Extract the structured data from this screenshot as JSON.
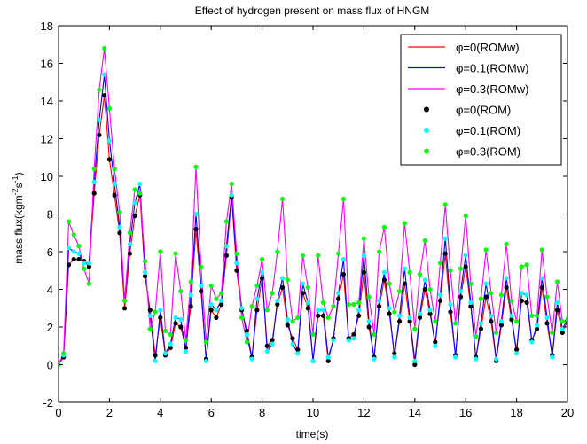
{
  "chart_data": {
    "type": "line",
    "title": "Effect of hydrogen present on mass flux of HNGM",
    "xlabel": "time(s)",
    "ylabel": "mass flux(kgm^-2s^-1)",
    "xlim": [
      0,
      20
    ],
    "ylim": [
      -2,
      18
    ],
    "xticks": [
      0,
      2,
      4,
      6,
      8,
      10,
      12,
      14,
      16,
      18,
      20
    ],
    "yticks": [
      -2,
      0,
      2,
      4,
      6,
      8,
      10,
      12,
      14,
      16,
      18
    ],
    "grid": false,
    "legend_position": "top-right",
    "x": [
      0,
      0.2,
      0.4,
      0.6,
      0.8,
      1.0,
      1.2,
      1.4,
      1.6,
      1.8,
      2.0,
      2.2,
      2.4,
      2.6,
      2.8,
      3.0,
      3.2,
      3.4,
      3.6,
      3.8,
      4.0,
      4.2,
      4.4,
      4.6,
      4.8,
      5.0,
      5.2,
      5.4,
      5.6,
      5.8,
      6.0,
      6.2,
      6.4,
      6.6,
      6.8,
      7.0,
      7.2,
      7.4,
      7.6,
      7.8,
      8.0,
      8.2,
      8.4,
      8.6,
      8.8,
      9.0,
      9.2,
      9.4,
      9.6,
      9.8,
      10.0,
      10.2,
      10.4,
      10.6,
      10.8,
      11.0,
      11.2,
      11.4,
      11.6,
      11.8,
      12.0,
      12.2,
      12.4,
      12.6,
      12.8,
      13.0,
      13.2,
      13.4,
      13.6,
      13.8,
      14.0,
      14.2,
      14.4,
      14.6,
      14.8,
      15.0,
      15.2,
      15.4,
      15.6,
      15.8,
      16.0,
      16.2,
      16.4,
      16.6,
      16.8,
      17.0,
      17.2,
      17.4,
      17.6,
      17.8,
      18.0,
      18.2,
      18.4,
      18.6,
      18.8,
      19.0,
      19.2,
      19.4,
      19.6,
      19.8,
      20.0
    ],
    "series": [
      {
        "name": "φ=0(ROMw)",
        "style": "line",
        "color": "#ff0000",
        "values": [
          0.0,
          0.4,
          5.3,
          5.6,
          5.6,
          5.5,
          5.2,
          9.1,
          12.2,
          14.3,
          10.9,
          9.0,
          7.0,
          3.0,
          5.9,
          7.9,
          9.0,
          4.7,
          2.9,
          0.5,
          2.5,
          0.5,
          0.9,
          2.2,
          2.0,
          0.9,
          3.1,
          7.2,
          3.9,
          0.3,
          2.9,
          2.5,
          3.2,
          5.8,
          8.9,
          5.0,
          2.9,
          1.8,
          0.4,
          2.9,
          4.6,
          1.0,
          1.3,
          3.2,
          4.1,
          2.1,
          1.4,
          0.8,
          3.8,
          3.0,
          0.2,
          2.6,
          2.6,
          0.2,
          1.4,
          3.5,
          4.8,
          1.4,
          1.6,
          2.6,
          4.9,
          2.0,
          0.4,
          3.1,
          4.5,
          2.7,
          0.6,
          2.3,
          4.3,
          2.3,
          0.0,
          2.5,
          4.0,
          2.7,
          1.2,
          3.4,
          5.9,
          2.8,
          0.5,
          3.6,
          5.2,
          3.1,
          0.4,
          1.9,
          3.6,
          2.3,
          0.2,
          2.1,
          4.1,
          2.4,
          0.8,
          3.4,
          3.3,
          1.3,
          1.9,
          4.1,
          2.2,
          0.5,
          2.9,
          1.7,
          2.3
        ]
      },
      {
        "name": "φ=0.1(ROMw)",
        "style": "line",
        "color": "#0000ff",
        "values": [
          0.0,
          0.5,
          6.2,
          6.0,
          5.9,
          5.4,
          5.4,
          9.7,
          13.0,
          15.4,
          11.9,
          9.6,
          7.3,
          3.4,
          6.4,
          8.6,
          9.6,
          4.9,
          2.6,
          0.2,
          2.9,
          0.6,
          1.1,
          2.5,
          2.4,
          0.7,
          3.7,
          8.0,
          4.2,
          0.2,
          3.2,
          2.9,
          3.4,
          6.3,
          9.0,
          5.4,
          3.0,
          1.6,
          0.3,
          3.5,
          4.9,
          0.7,
          1.1,
          3.4,
          4.6,
          2.4,
          1.1,
          0.6,
          4.3,
          3.3,
          0.2,
          2.9,
          2.9,
          0.4,
          1.3,
          3.8,
          5.6,
          1.3,
          1.4,
          2.9,
          5.8,
          2.3,
          0.3,
          3.4,
          4.9,
          3.0,
          0.4,
          2.6,
          5.1,
          2.5,
          0.2,
          2.7,
          4.5,
          2.9,
          1.0,
          3.7,
          6.7,
          3.2,
          0.4,
          3.9,
          5.8,
          3.3,
          0.3,
          2.2,
          4.3,
          2.6,
          0.3,
          2.3,
          4.6,
          2.6,
          0.6,
          3.8,
          3.7,
          1.2,
          2.1,
          4.6,
          2.5,
          0.4,
          3.3,
          1.9,
          2.4
        ]
      },
      {
        "name": "φ=0.3(ROMw)",
        "style": "line",
        "color": "#ff00ff",
        "values": [
          0.0,
          0.6,
          7.6,
          6.9,
          6.3,
          5.1,
          4.3,
          10.4,
          14.6,
          16.8,
          13.6,
          10.4,
          8.1,
          3.4,
          7.0,
          9.3,
          9.1,
          5.5,
          1.9,
          2.8,
          6.0,
          1.8,
          1.6,
          5.9,
          3.9,
          1.3,
          4.4,
          10.5,
          5.2,
          1.2,
          4.2,
          3.5,
          3.8,
          7.6,
          9.6,
          5.9,
          2.5,
          1.2,
          3.1,
          4.2,
          5.6,
          2.9,
          3.8,
          6.0,
          8.8,
          4.5,
          2.3,
          2.5,
          5.8,
          4.1,
          1.6,
          5.8,
          3.3,
          2.5,
          3.1,
          5.9,
          8.8,
          3.2,
          3.2,
          3.3,
          6.7,
          3.6,
          1.6,
          6.0,
          7.3,
          4.3,
          2.8,
          3.9,
          7.5,
          4.9,
          1.9,
          4.8,
          6.6,
          4.0,
          2.3,
          5.4,
          8.5,
          5.0,
          2.2,
          5.1,
          7.9,
          4.3,
          1.5,
          3.5,
          6.1,
          3.8,
          1.7,
          3.7,
          6.4,
          3.4,
          2.3,
          5.2,
          5.3,
          2.6,
          2.6,
          6.1,
          3.6,
          1.7,
          4.4,
          2.3,
          2.4
        ]
      },
      {
        "name": "φ=0(ROM)",
        "style": "marker",
        "color": "#000000",
        "values": [
          0.0,
          0.4,
          5.3,
          5.6,
          5.6,
          5.5,
          5.2,
          9.1,
          12.2,
          14.3,
          10.9,
          9.0,
          7.0,
          3.0,
          5.9,
          7.9,
          9.0,
          4.7,
          2.9,
          0.5,
          2.5,
          0.5,
          0.9,
          2.2,
          2.0,
          0.9,
          3.1,
          7.2,
          3.9,
          0.3,
          2.9,
          2.5,
          3.2,
          5.8,
          8.9,
          5.0,
          2.9,
          1.8,
          0.4,
          2.9,
          4.6,
          1.0,
          1.3,
          3.2,
          4.1,
          2.1,
          1.4,
          0.8,
          3.8,
          3.0,
          0.2,
          2.6,
          2.6,
          0.2,
          1.4,
          3.5,
          4.8,
          1.4,
          1.6,
          2.6,
          4.9,
          2.0,
          0.4,
          3.1,
          4.5,
          2.7,
          0.6,
          2.3,
          4.3,
          2.3,
          0.0,
          2.5,
          4.0,
          2.7,
          1.2,
          3.4,
          5.9,
          2.8,
          0.5,
          3.6,
          5.2,
          3.1,
          0.4,
          1.9,
          3.6,
          2.3,
          0.2,
          2.1,
          4.1,
          2.4,
          0.8,
          3.4,
          3.3,
          1.3,
          1.9,
          4.1,
          2.2,
          0.5,
          2.9,
          1.7,
          2.3
        ]
      },
      {
        "name": "φ=0.1(ROM)",
        "style": "marker",
        "color": "#00ffff",
        "values": [
          0.0,
          0.5,
          6.2,
          6.0,
          5.9,
          5.4,
          5.4,
          9.7,
          13.0,
          15.4,
          11.9,
          9.6,
          7.3,
          3.4,
          6.4,
          8.6,
          9.6,
          4.9,
          2.6,
          0.2,
          2.9,
          0.6,
          1.1,
          2.5,
          2.4,
          0.7,
          3.7,
          8.0,
          4.2,
          0.2,
          3.2,
          2.9,
          3.4,
          6.3,
          9.0,
          5.4,
          3.0,
          1.6,
          0.3,
          3.5,
          4.9,
          0.7,
          1.1,
          3.4,
          4.6,
          2.4,
          1.1,
          0.6,
          4.3,
          3.3,
          0.2,
          2.9,
          2.9,
          0.4,
          1.3,
          3.8,
          5.6,
          1.3,
          1.4,
          2.9,
          5.8,
          2.3,
          0.3,
          3.4,
          4.9,
          3.0,
          0.4,
          2.6,
          5.1,
          2.5,
          0.2,
          2.7,
          4.5,
          2.9,
          1.0,
          3.7,
          6.7,
          3.2,
          0.4,
          3.9,
          5.8,
          3.3,
          0.3,
          2.2,
          4.3,
          2.6,
          0.3,
          2.3,
          4.6,
          2.6,
          0.6,
          3.8,
          3.7,
          1.2,
          2.1,
          4.6,
          2.5,
          0.4,
          3.3,
          1.9,
          2.4
        ]
      },
      {
        "name": "φ=0.3(ROM)",
        "style": "marker",
        "color": "#00ff00",
        "values": [
          0.0,
          0.6,
          7.6,
          6.9,
          6.3,
          5.1,
          4.3,
          10.4,
          14.6,
          16.8,
          13.6,
          10.4,
          8.1,
          3.4,
          7.0,
          9.3,
          9.1,
          5.5,
          1.9,
          2.8,
          6.0,
          1.8,
          1.6,
          5.9,
          3.9,
          1.3,
          4.4,
          10.5,
          5.2,
          1.2,
          4.2,
          3.5,
          3.8,
          7.6,
          9.6,
          5.9,
          2.5,
          1.2,
          3.1,
          4.2,
          5.6,
          2.9,
          3.8,
          6.0,
          8.8,
          4.5,
          2.3,
          2.5,
          5.8,
          4.1,
          1.6,
          5.8,
          3.3,
          2.5,
          3.1,
          5.9,
          8.8,
          3.2,
          3.2,
          3.3,
          6.7,
          3.6,
          1.6,
          6.0,
          7.3,
          4.3,
          2.8,
          3.9,
          7.5,
          4.9,
          1.9,
          4.8,
          6.6,
          4.0,
          2.3,
          5.4,
          8.5,
          5.0,
          2.2,
          5.1,
          7.9,
          4.3,
          1.5,
          3.5,
          6.1,
          3.8,
          1.7,
          3.7,
          6.4,
          3.4,
          2.3,
          5.2,
          5.3,
          2.6,
          2.6,
          6.1,
          3.6,
          1.7,
          4.4,
          2.3,
          2.4
        ]
      }
    ]
  }
}
